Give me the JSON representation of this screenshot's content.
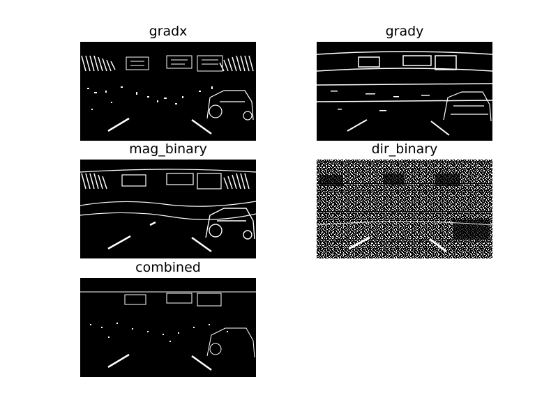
{
  "figure": {
    "panels": [
      {
        "id": "gradx",
        "title": "gradx",
        "kind": "edges-x"
      },
      {
        "id": "grady",
        "title": "grady",
        "kind": "edges-y"
      },
      {
        "id": "mag_binary",
        "title": "mag_binary",
        "kind": "edges-mag"
      },
      {
        "id": "dir_binary",
        "title": "dir_binary",
        "kind": "noise-dir"
      },
      {
        "id": "combined",
        "title": "combined",
        "kind": "edges-combined"
      }
    ],
    "colors": {
      "background": "#000000",
      "foreground": "#ffffff",
      "page": "#ffffff"
    }
  }
}
